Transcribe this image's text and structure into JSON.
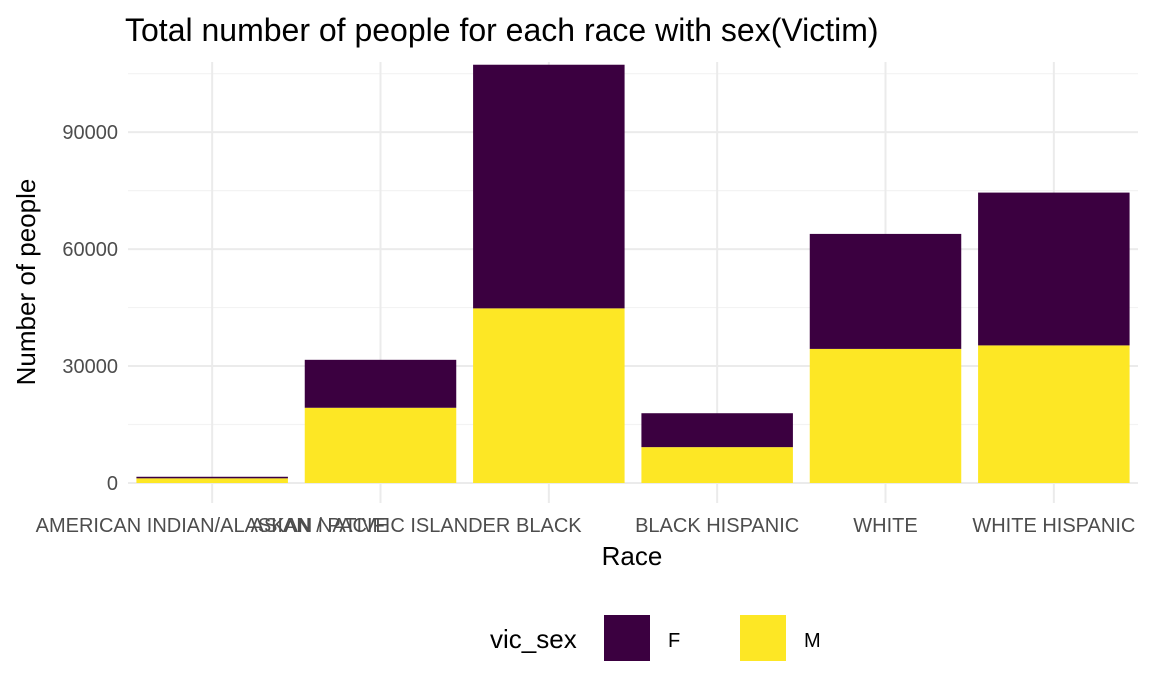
{
  "chart_data": {
    "type": "bar",
    "stacked": true,
    "title": "Total number of people for each race with sex(Victim)",
    "xlabel": "Race",
    "ylabel": "Number of people",
    "categories": [
      "AMERICAN INDIAN/ALASKAN NATIVE",
      "ASIAN / PACIFIC ISLANDER",
      "BLACK",
      "BLACK HISPANIC",
      "WHITE",
      "WHITE HISPANIC"
    ],
    "series": [
      {
        "name": "F",
        "color": "#3b0040",
        "values": [
          400,
          12300,
          62500,
          8700,
          29500,
          39200
        ]
      },
      {
        "name": "M",
        "color": "#fde725",
        "values": [
          1200,
          19300,
          44800,
          9200,
          34400,
          35300
        ]
      }
    ],
    "yticks": [
      0,
      30000,
      60000,
      90000
    ],
    "ylim": [
      0,
      108000
    ],
    "grid": true,
    "legend": {
      "title": "vic_sex",
      "position": "bottom"
    }
  }
}
